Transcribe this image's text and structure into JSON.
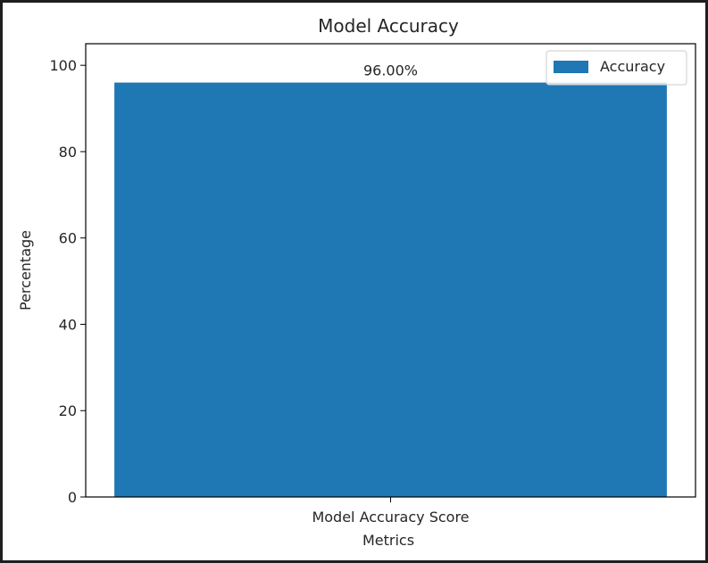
{
  "chart_data": {
    "type": "bar",
    "title": "Model Accuracy",
    "xlabel": "Metrics",
    "ylabel": "Percentage",
    "categories": [
      "Model Accuracy Score"
    ],
    "series": [
      {
        "name": "Accuracy",
        "values": [
          96.0
        ],
        "color": "#1f77b4"
      }
    ],
    "data_labels": [
      "96.00%"
    ],
    "ylim": [
      0,
      100
    ],
    "yticks": [
      0,
      20,
      40,
      60,
      80,
      100
    ],
    "legend": {
      "position": "upper-right",
      "entries": [
        "Accuracy"
      ]
    },
    "grid": false
  },
  "colors": {
    "bar": "#1f77b4",
    "axis": "#000000",
    "text": "#262626",
    "background": "#ffffff",
    "outer": "#1e1e1e"
  }
}
